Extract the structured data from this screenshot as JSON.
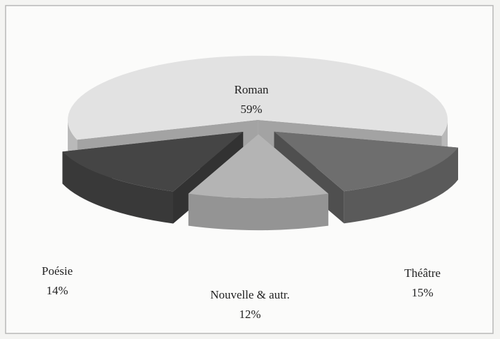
{
  "chart_data": {
    "type": "pie",
    "categories": [
      "Roman",
      "Théâtre",
      "Nouvelle & autr.",
      "Poésie"
    ],
    "values": [
      59,
      15,
      12,
      14
    ],
    "value_labels": [
      "59%",
      "15%",
      "12%",
      "14%"
    ],
    "colors": [
      "#e2e2e2",
      "#6e6e6e",
      "#b4b4b4",
      "#454545"
    ]
  }
}
